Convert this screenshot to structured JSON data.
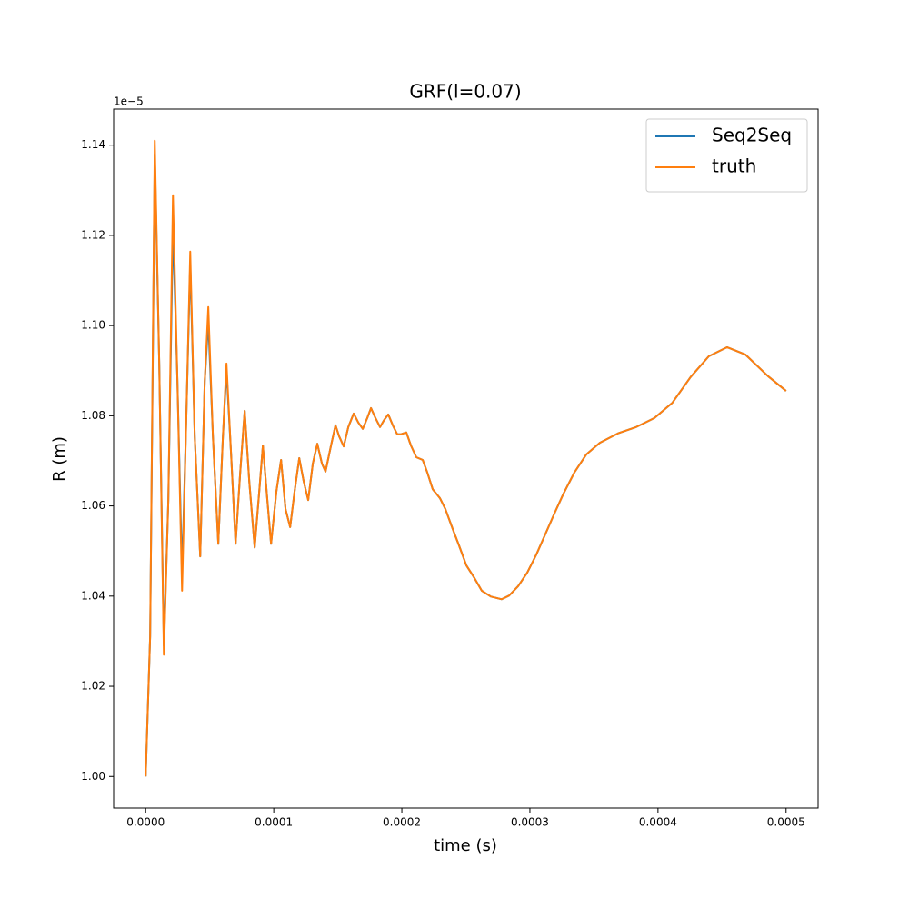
{
  "chart_data": {
    "type": "line",
    "title": "GRF(l=0.07)",
    "x_label": "time (s)",
    "y_label": "R (m)",
    "y_offset_label": "1e−5",
    "legend": "upper right",
    "grid": false,
    "xlim": [
      -2.5e-05,
      0.000525
    ],
    "ylim": [
      9.93e-06,
      1.148e-05
    ],
    "xticks": [
      {
        "value": 0,
        "label": "0.0000"
      },
      0.0001,
      0.0002,
      0.0003,
      0.0004,
      0.0005
    ],
    "yticks": [
      {
        "value": 1e-05,
        "label": "1.00"
      },
      {
        "value": 1.02e-05,
        "label": "1.02"
      },
      {
        "value": 1.04e-05,
        "label": "1.04"
      },
      {
        "value": 1.06e-05,
        "label": "1.06"
      },
      {
        "value": 1.08e-05,
        "label": "1.08"
      },
      {
        "value": 1.1e-05,
        "label": "1.10"
      },
      {
        "value": 1.12e-05,
        "label": "1.12"
      },
      {
        "value": 1.14e-05,
        "label": "1.14"
      }
    ],
    "x": [
      0,
      3.5e-06,
      7.1e-06,
      1.06e-05,
      1.42e-05,
      1.77e-05,
      2.13e-05,
      2.48e-05,
      2.84e-05,
      3.19e-05,
      3.48e-05,
      3.83e-05,
      4.26e-05,
      4.61e-05,
      4.89e-05,
      5.25e-05,
      5.67e-05,
      6.03e-05,
      6.31e-05,
      6.67e-05,
      7.02e-05,
      7.38e-05,
      7.73e-05,
      8.09e-05,
      8.51e-05,
      8.87e-05,
      9.15e-05,
      9.5e-05,
      9.79e-05,
      0.0001021,
      0.0001057,
      0.0001092,
      0.0001128,
      0.0001163,
      0.0001199,
      0.0001234,
      0.0001269,
      0.0001305,
      0.000134,
      0.0001376,
      0.0001404,
      0.0001447,
      0.0001482,
      0.0001511,
      0.0001546,
      0.0001582,
      0.0001624,
      0.000166,
      0.0001695,
      0.000173,
      0.0001759,
      0.0001794,
      0.000183,
      0.0001858,
      0.0001894,
      0.0001929,
      0.0001964,
      0.0001993,
      0.0002035,
      0.0002071,
      0.0002113,
      0.0002163,
      0.0002199,
      0.0002241,
      0.0002298,
      0.000234,
      0.0002397,
      0.0002447,
      0.0002504,
      0.0002567,
      0.0002624,
      0.0002695,
      0.000278,
      0.0002837,
      0.0002908,
      0.0002979,
      0.000305,
      0.000312,
      0.0003191,
      0.0003262,
      0.0003347,
      0.000344,
      0.0003546,
      0.0003688,
      0.000383,
      0.0003972,
      0.0004113,
      0.0004255,
      0.0004397,
      0.0004539,
      0.0004681,
      0.0004858,
      0.0005
    ],
    "series": [
      {
        "name": "Seq2Seq",
        "color": "#1f77b4",
        "values": [
          1e-05,
          1.0311e-05,
          1.138e-05,
          1.0916e-05,
          1.029e-05,
          1.0613e-05,
          1.1222e-05,
          1.0876e-05,
          1.045e-05,
          1.0815e-05,
          1.114e-05,
          1.0754e-05,
          1.0488e-05,
          1.0876e-05,
          1.101e-05,
          1.0754e-05,
          1.0516e-05,
          1.0754e-05,
          1.09e-05,
          1.0714e-05,
          1.0516e-05,
          1.0674e-05,
          1.0811e-05,
          1.0654e-05,
          1.0508e-05,
          1.0633e-05,
          1.0734e-05,
          1.0613e-05,
          1.0516e-05,
          1.0633e-05,
          1.0702e-05,
          1.0593e-05,
          1.0553e-05,
          1.0633e-05,
          1.0706e-05,
          1.0654e-05,
          1.0613e-05,
          1.0694e-05,
          1.0738e-05,
          1.0694e-05,
          1.0676e-05,
          1.0734e-05,
          1.0779e-05,
          1.0754e-05,
          1.0732e-05,
          1.0775e-05,
          1.0805e-05,
          1.0785e-05,
          1.0771e-05,
          1.0795e-05,
          1.0817e-05,
          1.0795e-05,
          1.0775e-05,
          1.0789e-05,
          1.0803e-05,
          1.0779e-05,
          1.0759e-05,
          1.0759e-05,
          1.0763e-05,
          1.0734e-05,
          1.0708e-05,
          1.0702e-05,
          1.0674e-05,
          1.0637e-05,
          1.0617e-05,
          1.0593e-05,
          1.0549e-05,
          1.0512e-05,
          1.0468e-05,
          1.044e-05,
          1.0412e-05,
          1.0399e-05,
          1.0393e-05,
          1.0401e-05,
          1.0422e-05,
          1.0452e-05,
          1.0492e-05,
          1.0537e-05,
          1.0583e-05,
          1.0627e-05,
          1.0674e-05,
          1.0714e-05,
          1.074e-05,
          1.0761e-05,
          1.0775e-05,
          1.0795e-05,
          1.0829e-05,
          1.0886e-05,
          1.0932e-05,
          1.0952e-05,
          1.0936e-05,
          1.0888e-05,
          1.0855e-05
        ]
      },
      {
        "name": "truth",
        "color": "#ff7f0e",
        "values": [
          1e-05,
          1.0311e-05,
          1.141e-05,
          1.0916e-05,
          1.027e-05,
          1.0613e-05,
          1.1289e-05,
          1.0876e-05,
          1.0412e-05,
          1.0815e-05,
          1.1164e-05,
          1.0754e-05,
          1.0488e-05,
          1.0876e-05,
          1.1041e-05,
          1.0754e-05,
          1.0516e-05,
          1.0754e-05,
          1.0916e-05,
          1.0714e-05,
          1.0516e-05,
          1.0674e-05,
          1.0811e-05,
          1.0654e-05,
          1.0508e-05,
          1.0633e-05,
          1.0734e-05,
          1.0613e-05,
          1.0516e-05,
          1.0633e-05,
          1.0702e-05,
          1.0593e-05,
          1.0553e-05,
          1.0633e-05,
          1.0706e-05,
          1.0654e-05,
          1.0613e-05,
          1.0694e-05,
          1.0738e-05,
          1.0694e-05,
          1.0676e-05,
          1.0734e-05,
          1.0779e-05,
          1.0754e-05,
          1.0732e-05,
          1.0775e-05,
          1.0805e-05,
          1.0785e-05,
          1.0771e-05,
          1.0795e-05,
          1.0817e-05,
          1.0795e-05,
          1.0775e-05,
          1.0789e-05,
          1.0803e-05,
          1.0779e-05,
          1.0759e-05,
          1.0759e-05,
          1.0763e-05,
          1.0734e-05,
          1.0708e-05,
          1.0702e-05,
          1.0674e-05,
          1.0637e-05,
          1.0617e-05,
          1.0593e-05,
          1.0549e-05,
          1.0512e-05,
          1.0468e-05,
          1.044e-05,
          1.0412e-05,
          1.0399e-05,
          1.0393e-05,
          1.0401e-05,
          1.0422e-05,
          1.0452e-05,
          1.0492e-05,
          1.0537e-05,
          1.0583e-05,
          1.0627e-05,
          1.0674e-05,
          1.0714e-05,
          1.074e-05,
          1.0761e-05,
          1.0775e-05,
          1.0795e-05,
          1.0829e-05,
          1.0886e-05,
          1.0932e-05,
          1.0952e-05,
          1.0936e-05,
          1.0888e-05,
          1.0855e-05
        ]
      }
    ]
  }
}
